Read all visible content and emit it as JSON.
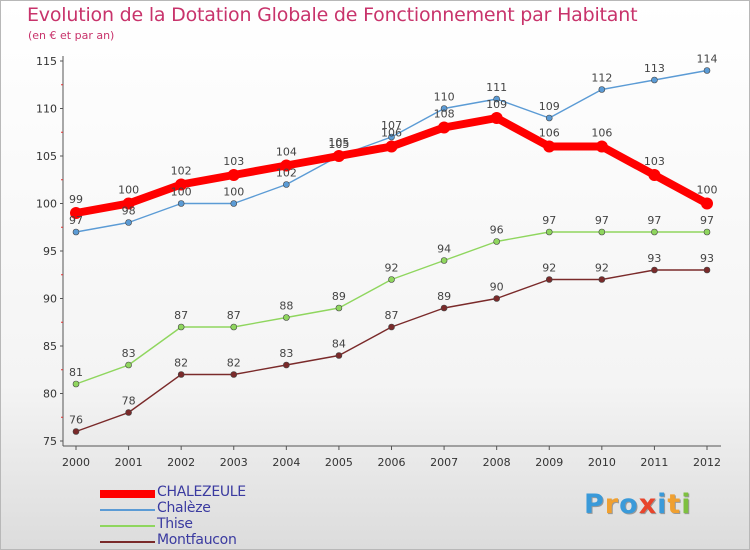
{
  "chart_data": {
    "type": "line",
    "title": "Evolution de la Dotation Globale de Fonctionnement par Habitant",
    "subtitle": "(en € et par an)",
    "xlabel": "",
    "ylabel": "",
    "ylim": [
      75,
      115
    ],
    "yticks": [
      "75",
      "80",
      "85",
      "90",
      "95",
      "100",
      "105",
      "110",
      "115"
    ],
    "grid": false,
    "legend_position": "bottom-left",
    "categories": [
      "2000",
      "2001",
      "2002",
      "2003",
      "2004",
      "2005",
      "2006",
      "2007",
      "2008",
      "2009",
      "2010",
      "2011",
      "2012"
    ],
    "series": [
      {
        "name": "CHALEZEULE",
        "color": "#ff0000",
        "values": [
          99,
          100,
          102,
          103,
          104,
          105,
          106,
          108,
          109,
          106,
          106,
          103,
          100
        ]
      },
      {
        "name": "Chalèze",
        "color": "#5b9bd5",
        "values": [
          97,
          98,
          100,
          100,
          102,
          105,
          107,
          110,
          111,
          109,
          112,
          113,
          114
        ]
      },
      {
        "name": "Thise",
        "color": "#8fd65e",
        "values": [
          81,
          83,
          87,
          87,
          88,
          89,
          92,
          94,
          96,
          97,
          97,
          97,
          97
        ]
      },
      {
        "name": "Montfaucon",
        "color": "#7a2a2a",
        "values": [
          76,
          78,
          82,
          82,
          83,
          84,
          87,
          89,
          90,
          92,
          92,
          93,
          93
        ]
      }
    ]
  },
  "logo": {
    "letters": [
      "P",
      "r",
      "o",
      "x",
      "i",
      "t",
      "i"
    ],
    "colors": [
      "#3a9ad9",
      "#f0a030",
      "#3a9ad9",
      "#e8452c",
      "#3a9ad9",
      "#f0a030",
      "#7ec040"
    ]
  }
}
